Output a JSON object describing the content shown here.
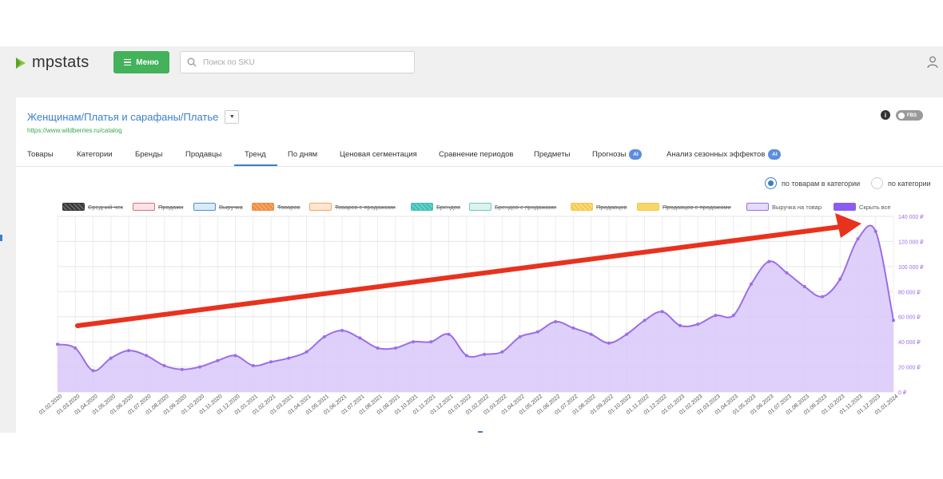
{
  "app": {
    "logo_text": "mpstats",
    "menu_label": "Меню",
    "search_placeholder": "Поиск по SKU"
  },
  "colors": {
    "brand_green": "#43b25a",
    "link_blue": "#3c7fc5",
    "series_purple": "#9b6ee8",
    "arrow_red": "#e8321e"
  },
  "page": {
    "breadcrumb": "Женщинам/Платья и сарафаны/Платье",
    "url": "https://www.wildberries.ru/catalog",
    "toggle_label": "FBS",
    "info_icon": "i"
  },
  "tabs": [
    {
      "label": "Товары"
    },
    {
      "label": "Категории"
    },
    {
      "label": "Бренды"
    },
    {
      "label": "Продавцы"
    },
    {
      "label": "Тренд",
      "active": true
    },
    {
      "label": "По дням"
    },
    {
      "label": "Ценовая сегментация"
    },
    {
      "label": "Сравнение периодов"
    },
    {
      "label": "Предметы"
    },
    {
      "label": "Прогнозы",
      "badge": "AI"
    },
    {
      "label": "Анализ сезонных эффектов",
      "badge": "AI"
    }
  ],
  "radio": {
    "option_1": "по товарам в категории",
    "option_2": "по категории",
    "selected": "по товарам в категории"
  },
  "legend": [
    {
      "label": "Средний чек",
      "color": "#333333",
      "enabled": false
    },
    {
      "label": "Продажи",
      "color": "#e06c78",
      "enabled": false
    },
    {
      "label": "Выручка",
      "color": "#4a90d9",
      "enabled": false
    },
    {
      "label": "Товаров",
      "color": "#f08a3c",
      "enabled": false
    },
    {
      "label": "Товаров с продажами",
      "color": "#f2a45c",
      "enabled": false
    },
    {
      "label": "Брендов",
      "color": "#3cbfb4",
      "enabled": false
    },
    {
      "label": "Брендов с продажами",
      "color": "#6cc9c0",
      "enabled": false
    },
    {
      "label": "Продавцов",
      "color": "#f5c84a",
      "enabled": false
    },
    {
      "label": "Продавцов с продажами",
      "color": "#f5c84a",
      "enabled": false
    },
    {
      "label": "Выручка на товар",
      "color": "#9b6ee8",
      "enabled": true
    },
    {
      "label": "Скрыть все",
      "color": "#8b5cf0",
      "enabled": true
    }
  ],
  "chart_data": {
    "type": "area",
    "x": [
      "01.02.2020",
      "01.03.2020",
      "01.04.2020",
      "01.05.2020",
      "01.06.2020",
      "01.07.2020",
      "01.08.2020",
      "01.09.2020",
      "01.10.2020",
      "01.11.2020",
      "01.12.2020",
      "01.01.2021",
      "01.02.2021",
      "01.03.2021",
      "01.04.2021",
      "01.05.2021",
      "01.06.2021",
      "01.07.2021",
      "01.08.2021",
      "01.09.2021",
      "01.10.2021",
      "01.11.2021",
      "01.12.2021",
      "01.01.2022",
      "01.02.2022",
      "01.03.2022",
      "01.04.2022",
      "01.05.2022",
      "01.06.2022",
      "01.07.2022",
      "01.08.2022",
      "01.09.2022",
      "01.10.2022",
      "01.11.2022",
      "01.12.2022",
      "01.01.2023",
      "01.02.2023",
      "01.03.2023",
      "01.04.2023",
      "01.05.2023",
      "01.06.2023",
      "01.07.2023",
      "01.08.2023",
      "01.09.2023",
      "01.10.2023",
      "01.11.2023",
      "01.12.2023",
      "01.01.2024"
    ],
    "series": [
      {
        "name": "Выручка на товар",
        "values": [
          38000,
          35000,
          17000,
          27000,
          33000,
          29000,
          21000,
          18000,
          20000,
          25000,
          29000,
          21000,
          24000,
          27000,
          32000,
          44000,
          49000,
          43000,
          35000,
          35000,
          40000,
          40000,
          46000,
          29000,
          30000,
          32000,
          44000,
          48000,
          56000,
          51000,
          46000,
          39000,
          46000,
          57000,
          64000,
          53000,
          54000,
          61000,
          61000,
          86000,
          104000,
          95000,
          84000,
          76000,
          90000,
          122000,
          128000,
          57000
        ]
      }
    ],
    "ylim": [
      0,
      140000
    ],
    "yticks": [
      "0 ₽",
      "20 000 ₽",
      "40 000 ₽",
      "60 000 ₽",
      "80 000 ₽",
      "100 000 ₽",
      "120 000 ₽",
      "140 000 ₽"
    ],
    "y_axis_side": "right",
    "grid": true,
    "legend_position": "top",
    "annotation": "red arrow indicating upward trend"
  }
}
